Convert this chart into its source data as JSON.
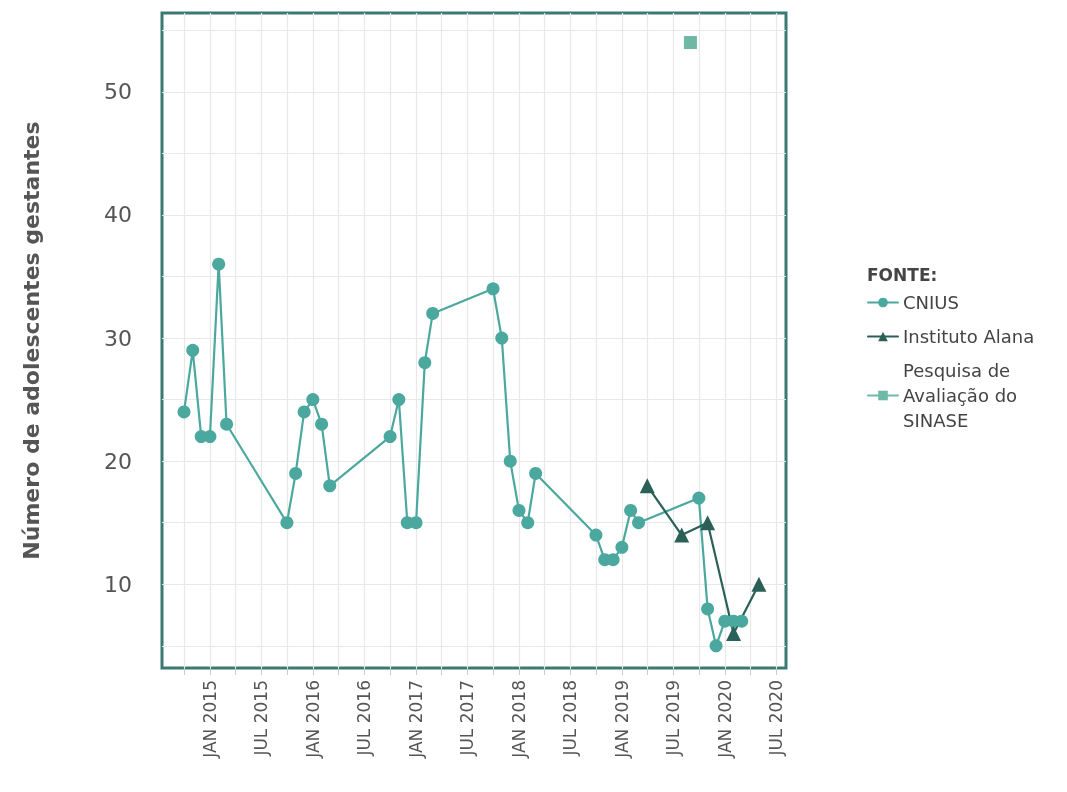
{
  "chart_data": {
    "type": "line",
    "ylabel": "Número de adolescentes gestantes",
    "legend_title": "FONTE:",
    "legend": "right",
    "grid": true,
    "xlim": [
      "2014-07-15",
      "2020-08-05"
    ],
    "xticks": [
      {
        "value": "2014-10",
        "label": null
      },
      {
        "value": "2015-01",
        "label": "JAN 2015"
      },
      {
        "value": "2015-04",
        "label": null
      },
      {
        "value": "2015-07",
        "label": "JUL 2015"
      },
      {
        "value": "2015-10",
        "label": null
      },
      {
        "value": "2016-01",
        "label": "JAN 2016"
      },
      {
        "value": "2016-04",
        "label": null
      },
      {
        "value": "2016-07",
        "label": "JUL 2016"
      },
      {
        "value": "2016-10",
        "label": null
      },
      {
        "value": "2017-01",
        "label": "JAN 2017"
      },
      {
        "value": "2017-04",
        "label": null
      },
      {
        "value": "2017-07",
        "label": "JUL 2017"
      },
      {
        "value": "2017-10",
        "label": null
      },
      {
        "value": "2018-01",
        "label": "JAN 2018"
      },
      {
        "value": "2018-04",
        "label": null
      },
      {
        "value": "2018-07",
        "label": "JUL 2018"
      },
      {
        "value": "2018-10",
        "label": null
      },
      {
        "value": "2019-01",
        "label": "JAN 2019"
      },
      {
        "value": "2019-04",
        "label": null
      },
      {
        "value": "2019-07",
        "label": "JUL 2019"
      },
      {
        "value": "2019-10",
        "label": null
      },
      {
        "value": "2020-01",
        "label": "JAN 2020"
      },
      {
        "value": "2020-04",
        "label": null
      },
      {
        "value": "2020-07",
        "label": "JUL 2020"
      }
    ],
    "ylim": [
      3.2,
      56.4
    ],
    "yticks": [
      {
        "value": 5,
        "label": null
      },
      10,
      {
        "value": 15,
        "label": null
      },
      20,
      {
        "value": 25,
        "label": null
      },
      30,
      {
        "value": 35,
        "label": null
      },
      40,
      {
        "value": 45,
        "label": null
      },
      50,
      {
        "value": 55,
        "label": null
      }
    ],
    "series": [
      {
        "name": "CNIUS",
        "color": "#4ba89e",
        "marker": "circle",
        "x": [
          "2014-10",
          "2014-11",
          "2014-12",
          "2015-01",
          "2015-02",
          "2015-03",
          "2015-10",
          "2015-11",
          "2015-12",
          "2016-01",
          "2016-02",
          "2016-03",
          "2016-10",
          "2016-11",
          "2016-12",
          "2017-01",
          "2017-02",
          "2017-03",
          "2017-10",
          "2017-11",
          "2017-12",
          "2018-01",
          "2018-02",
          "2018-03",
          "2018-10",
          "2018-11",
          "2018-12",
          "2019-01",
          "2019-02",
          "2019-03",
          "2019-10",
          "2019-11",
          "2019-12",
          "2020-01",
          "2020-02",
          "2020-03"
        ],
        "values": [
          24,
          29,
          22,
          22,
          36,
          23,
          15,
          19,
          24,
          25,
          23,
          18,
          22,
          25,
          15,
          15,
          28,
          32,
          34,
          30,
          20,
          16,
          15,
          19,
          14,
          12,
          12,
          13,
          16,
          15,
          17,
          8,
          5,
          7,
          7,
          7
        ]
      },
      {
        "name": "Instituto Alana",
        "color": "#2b6058",
        "marker": "triangle",
        "x": [
          "2019-04",
          "2019-08",
          "2019-11",
          "2020-02",
          "2020-05"
        ],
        "values": [
          18,
          14,
          15,
          6,
          10
        ]
      },
      {
        "name": "Pesquisa de Avaliação do SINASE",
        "color": "#6fb8a5",
        "marker": "square",
        "x": [
          "2019-09"
        ],
        "values": [
          54
        ]
      }
    ]
  }
}
